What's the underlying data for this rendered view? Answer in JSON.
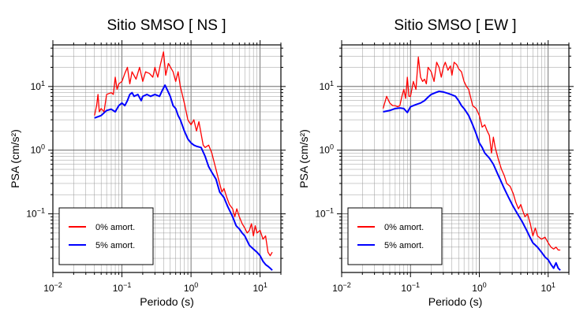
{
  "figure": {
    "charts": [
      {
        "id": "ns",
        "title": "Sitio SMSO [ NS ]"
      },
      {
        "id": "ew",
        "title": "Sitio SMSO [ EW ]"
      }
    ]
  },
  "chart_data": [
    {
      "type": "line",
      "title": "Sitio SMSO [ NS ]",
      "xlabel": "Periodo (s)",
      "ylabel": "PSA (cm/s²)",
      "xscale": "log",
      "yscale": "log",
      "xlim": [
        0.01,
        20
      ],
      "ylim": [
        0.012,
        45
      ],
      "x_tick_labels": [
        {
          "value": 0.01,
          "base": "10",
          "exp": "−2"
        },
        {
          "value": 0.1,
          "base": "10",
          "exp": "−1"
        },
        {
          "value": 1,
          "base": "10",
          "exp": "0"
        },
        {
          "value": 10,
          "base": "10",
          "exp": "1"
        }
      ],
      "y_tick_labels": [
        {
          "value": 0.1,
          "base": "10",
          "exp": "−1"
        },
        {
          "value": 1,
          "base": "10",
          "exp": "0"
        },
        {
          "value": 10,
          "base": "10",
          "exp": "1"
        }
      ],
      "grid": true,
      "legend": "bottom-left",
      "series": [
        {
          "name": "0% amort.",
          "color": "#ff0000",
          "points": [
            [
              0.04,
              3.5
            ],
            [
              0.043,
              5
            ],
            [
              0.045,
              7.5
            ],
            [
              0.047,
              4
            ],
            [
              0.05,
              4.5
            ],
            [
              0.055,
              4
            ],
            [
              0.06,
              7.5
            ],
            [
              0.07,
              8
            ],
            [
              0.075,
              7.5
            ],
            [
              0.08,
              14
            ],
            [
              0.085,
              9
            ],
            [
              0.09,
              11
            ],
            [
              0.1,
              12
            ],
            [
              0.11,
              16
            ],
            [
              0.12,
              20
            ],
            [
              0.13,
              11
            ],
            [
              0.14,
              17
            ],
            [
              0.16,
              13
            ],
            [
              0.18,
              20
            ],
            [
              0.2,
              12
            ],
            [
              0.22,
              17
            ],
            [
              0.25,
              16
            ],
            [
              0.28,
              14
            ],
            [
              0.3,
              20
            ],
            [
              0.33,
              14
            ],
            [
              0.36,
              22
            ],
            [
              0.4,
              35
            ],
            [
              0.43,
              15
            ],
            [
              0.47,
              23
            ],
            [
              0.55,
              17
            ],
            [
              0.6,
              12
            ],
            [
              0.65,
              17
            ],
            [
              0.7,
              10
            ],
            [
              0.8,
              5.5
            ],
            [
              0.9,
              3
            ],
            [
              1.0,
              2.5
            ],
            [
              1.1,
              3
            ],
            [
              1.2,
              2
            ],
            [
              1.3,
              2.8
            ],
            [
              1.5,
              1.2
            ],
            [
              1.6,
              1.1
            ],
            [
              1.8,
              1.2
            ],
            [
              2.0,
              0.9
            ],
            [
              2.2,
              0.6
            ],
            [
              2.5,
              0.35
            ],
            [
              2.8,
              0.22
            ],
            [
              3.0,
              0.25
            ],
            [
              3.3,
              0.18
            ],
            [
              3.6,
              0.14
            ],
            [
              4.0,
              0.12
            ],
            [
              4.3,
              0.09
            ],
            [
              4.6,
              0.12
            ],
            [
              5.0,
              0.09
            ],
            [
              5.5,
              0.07
            ],
            [
              6.0,
              0.06
            ],
            [
              6.5,
              0.05
            ],
            [
              7.0,
              0.055
            ],
            [
              7.5,
              0.07
            ],
            [
              8.0,
              0.045
            ],
            [
              8.5,
              0.065
            ],
            [
              9.0,
              0.05
            ],
            [
              10,
              0.055
            ],
            [
              11,
              0.04
            ],
            [
              12,
              0.045
            ],
            [
              13,
              0.025
            ],
            [
              14,
              0.022
            ],
            [
              15,
              0.025
            ]
          ]
        },
        {
          "name": "5% amort.",
          "color": "#0000ff",
          "points": [
            [
              0.04,
              3.2
            ],
            [
              0.05,
              3.5
            ],
            [
              0.06,
              4.2
            ],
            [
              0.07,
              4.4
            ],
            [
              0.08,
              4.0
            ],
            [
              0.09,
              5.0
            ],
            [
              0.1,
              5.5
            ],
            [
              0.11,
              5.0
            ],
            [
              0.12,
              6.0
            ],
            [
              0.13,
              7.5
            ],
            [
              0.14,
              8.0
            ],
            [
              0.15,
              7.0
            ],
            [
              0.17,
              7.5
            ],
            [
              0.19,
              6.0
            ],
            [
              0.2,
              7.0
            ],
            [
              0.23,
              7.5
            ],
            [
              0.26,
              7.0
            ],
            [
              0.3,
              7.5
            ],
            [
              0.35,
              7.0
            ],
            [
              0.38,
              8.5
            ],
            [
              0.42,
              10.5
            ],
            [
              0.45,
              9.0
            ],
            [
              0.5,
              7.0
            ],
            [
              0.55,
              5.0
            ],
            [
              0.6,
              4.5
            ],
            [
              0.65,
              3.5
            ],
            [
              0.7,
              3.0
            ],
            [
              0.8,
              2.0
            ],
            [
              0.9,
              1.5
            ],
            [
              1.0,
              1.3
            ],
            [
              1.1,
              1.2
            ],
            [
              1.2,
              1.15
            ],
            [
              1.4,
              1.1
            ],
            [
              1.6,
              0.8
            ],
            [
              1.8,
              0.55
            ],
            [
              2.0,
              0.45
            ],
            [
              2.3,
              0.35
            ],
            [
              2.6,
              0.22
            ],
            [
              3.0,
              0.18
            ],
            [
              3.4,
              0.13
            ],
            [
              4.0,
              0.09
            ],
            [
              4.5,
              0.065
            ],
            [
              5.0,
              0.058
            ],
            [
              5.5,
              0.05
            ],
            [
              6.0,
              0.045
            ],
            [
              7.0,
              0.032
            ],
            [
              8.0,
              0.028
            ],
            [
              9.0,
              0.025
            ],
            [
              10,
              0.022
            ],
            [
              11,
              0.018
            ],
            [
              12,
              0.016
            ],
            [
              13,
              0.015
            ],
            [
              14,
              0.014
            ],
            [
              15,
              0.013
            ]
          ]
        }
      ]
    },
    {
      "type": "line",
      "title": "Sitio SMSO [ EW ]",
      "xlabel": "Periodo (s)",
      "ylabel": "PSA (cm/s²)",
      "xscale": "log",
      "yscale": "log",
      "xlim": [
        0.01,
        20
      ],
      "ylim": [
        0.012,
        45
      ],
      "x_tick_labels": [
        {
          "value": 0.01,
          "base": "10",
          "exp": "−2"
        },
        {
          "value": 0.1,
          "base": "10",
          "exp": "−1"
        },
        {
          "value": 1,
          "base": "10",
          "exp": "0"
        },
        {
          "value": 10,
          "base": "10",
          "exp": "1"
        }
      ],
      "y_tick_labels": [
        {
          "value": 0.1,
          "base": "10",
          "exp": "−1"
        },
        {
          "value": 1,
          "base": "10",
          "exp": "0"
        },
        {
          "value": 10,
          "base": "10",
          "exp": "1"
        }
      ],
      "grid": true,
      "legend": "bottom-left",
      "series": [
        {
          "name": "0% amort.",
          "color": "#ff0000",
          "points": [
            [
              0.04,
              4.5
            ],
            [
              0.045,
              7
            ],
            [
              0.05,
              5.5
            ],
            [
              0.055,
              5
            ],
            [
              0.06,
              5
            ],
            [
              0.065,
              4.8
            ],
            [
              0.07,
              5
            ],
            [
              0.075,
              7
            ],
            [
              0.08,
              9
            ],
            [
              0.085,
              6.5
            ],
            [
              0.09,
              14
            ],
            [
              0.095,
              7
            ],
            [
              0.1,
              7
            ],
            [
              0.11,
              12
            ],
            [
              0.12,
              9
            ],
            [
              0.13,
              29
            ],
            [
              0.14,
              14
            ],
            [
              0.15,
              12
            ],
            [
              0.16,
              13
            ],
            [
              0.17,
              11
            ],
            [
              0.18,
              20
            ],
            [
              0.2,
              17
            ],
            [
              0.22,
              12
            ],
            [
              0.24,
              24
            ],
            [
              0.26,
              20
            ],
            [
              0.28,
              14
            ],
            [
              0.3,
              20
            ],
            [
              0.32,
              24
            ],
            [
              0.35,
              18
            ],
            [
              0.38,
              21
            ],
            [
              0.4,
              15
            ],
            [
              0.43,
              24
            ],
            [
              0.47,
              22
            ],
            [
              0.5,
              19
            ],
            [
              0.55,
              17
            ],
            [
              0.6,
              12
            ],
            [
              0.65,
              10
            ],
            [
              0.7,
              9
            ],
            [
              0.8,
              5
            ],
            [
              0.9,
              4.5
            ],
            [
              1.0,
              3.5
            ],
            [
              1.1,
              2.3
            ],
            [
              1.2,
              2.5
            ],
            [
              1.3,
              2.0
            ],
            [
              1.4,
              1.7
            ],
            [
              1.5,
              0.9
            ],
            [
              1.6,
              1.6
            ],
            [
              1.7,
              1.1
            ],
            [
              1.9,
              0.7
            ],
            [
              2.1,
              0.5
            ],
            [
              2.3,
              0.4
            ],
            [
              2.5,
              0.3
            ],
            [
              2.8,
              0.27
            ],
            [
              3.1,
              0.21
            ],
            [
              3.4,
              0.15
            ],
            [
              3.7,
              0.12
            ],
            [
              4.0,
              0.14
            ],
            [
              4.3,
              0.11
            ],
            [
              4.6,
              0.09
            ],
            [
              5.0,
              0.1
            ],
            [
              5.5,
              0.07
            ],
            [
              6.0,
              0.045
            ],
            [
              6.5,
              0.06
            ],
            [
              7.0,
              0.045
            ],
            [
              8.0,
              0.04
            ],
            [
              9.0,
              0.043
            ],
            [
              10,
              0.035
            ],
            [
              11,
              0.03
            ],
            [
              12,
              0.028
            ],
            [
              13,
              0.03
            ],
            [
              14,
              0.027
            ],
            [
              15,
              0.027
            ]
          ]
        },
        {
          "name": "5% amort.",
          "color": "#0000ff",
          "points": [
            [
              0.04,
              4.0
            ],
            [
              0.05,
              4.2
            ],
            [
              0.06,
              4.5
            ],
            [
              0.07,
              4.6
            ],
            [
              0.08,
              4.5
            ],
            [
              0.09,
              3.9
            ],
            [
              0.1,
              4.8
            ],
            [
              0.12,
              5.2
            ],
            [
              0.14,
              5.5
            ],
            [
              0.16,
              6.0
            ],
            [
              0.18,
              6.8
            ],
            [
              0.2,
              7.5
            ],
            [
              0.23,
              8.0
            ],
            [
              0.26,
              8.4
            ],
            [
              0.3,
              8.2
            ],
            [
              0.35,
              7.8
            ],
            [
              0.4,
              7.4
            ],
            [
              0.45,
              7.0
            ],
            [
              0.5,
              6.0
            ],
            [
              0.55,
              5.0
            ],
            [
              0.6,
              4.5
            ],
            [
              0.7,
              3.5
            ],
            [
              0.8,
              2.5
            ],
            [
              0.9,
              1.8
            ],
            [
              1.0,
              1.3
            ],
            [
              1.1,
              1.1
            ],
            [
              1.2,
              0.9
            ],
            [
              1.4,
              0.75
            ],
            [
              1.6,
              0.6
            ],
            [
              1.8,
              0.45
            ],
            [
              2.0,
              0.35
            ],
            [
              2.3,
              0.25
            ],
            [
              2.6,
              0.19
            ],
            [
              3.0,
              0.14
            ],
            [
              3.4,
              0.11
            ],
            [
              3.8,
              0.09
            ],
            [
              4.2,
              0.075
            ],
            [
              4.6,
              0.062
            ],
            [
              5.0,
              0.052
            ],
            [
              5.5,
              0.042
            ],
            [
              6.0,
              0.035
            ],
            [
              7.0,
              0.03
            ],
            [
              8.0,
              0.025
            ],
            [
              9.0,
              0.021
            ],
            [
              10,
              0.019
            ],
            [
              11,
              0.016
            ],
            [
              12,
              0.014
            ],
            [
              13,
              0.017
            ],
            [
              14,
              0.014
            ],
            [
              15,
              0.013
            ]
          ]
        }
      ]
    }
  ]
}
